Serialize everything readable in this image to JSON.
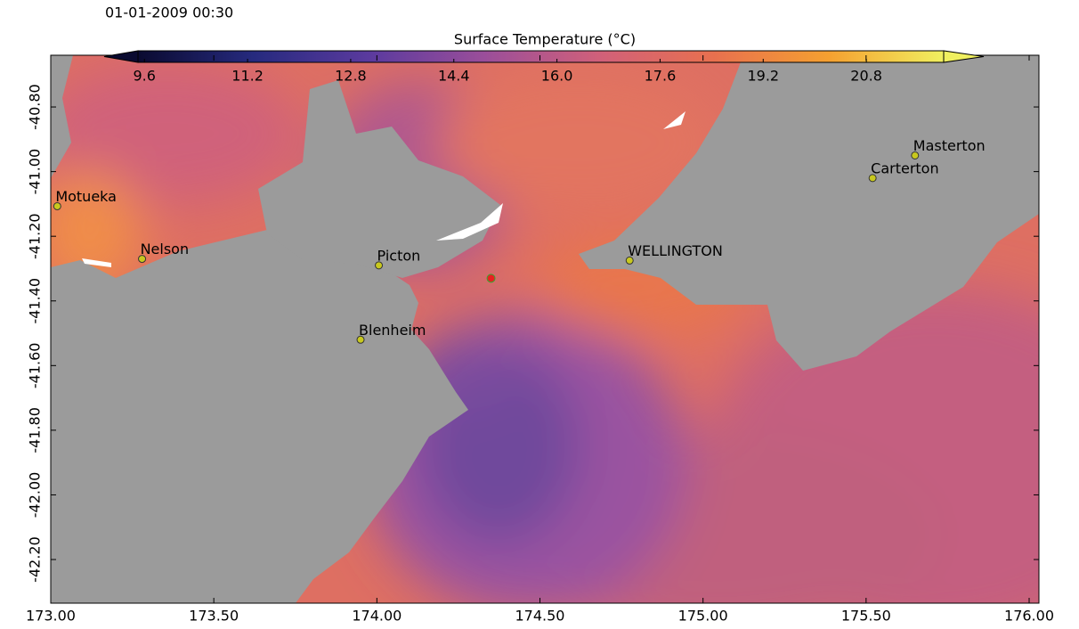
{
  "map": {
    "timestamp": "01-01-2009 00:30",
    "colorbar": {
      "title": "Surface Temperature (°C)",
      "clim": [
        9.5,
        22.0
      ],
      "ticks": [
        9.6,
        11.2,
        12.8,
        14.4,
        {
          "value": 16,
          "label": "16.0"
        },
        17.6,
        19.2,
        20.8
      ],
      "colors": [
        "#0a0a30",
        "#262a7e",
        "#5a3a9e",
        "#9a4e9a",
        "#d0607a",
        "#e8704f",
        "#f5a030",
        "#f0f060"
      ]
    },
    "xlim": [
      173.0,
      176.03
    ],
    "ylim": [
      -42.335,
      -40.64
    ],
    "xticks": [
      {
        "value": 173,
        "label": "173.00"
      },
      {
        "value": 173.5,
        "label": "173.50"
      },
      {
        "value": 174,
        "label": "174.00"
      },
      {
        "value": 174.5,
        "label": "174.50"
      },
      {
        "value": 175,
        "label": "175.00"
      },
      {
        "value": 175.5,
        "label": "175.50"
      },
      {
        "value": 176,
        "label": "176.00"
      }
    ],
    "yticks": [
      {
        "value": -40.8,
        "label": "-40.80"
      },
      {
        "value": -41,
        "label": "-41.00"
      },
      {
        "value": -41.2,
        "label": "-41.20"
      },
      {
        "value": -41.4,
        "label": "-41.40"
      },
      {
        "value": -41.6,
        "label": "-41.60"
      },
      {
        "value": -41.8,
        "label": "-41.80"
      },
      {
        "value": -42,
        "label": "-42.00"
      },
      {
        "value": -42.2,
        "label": "-42.20"
      }
    ],
    "cities": [
      {
        "name": "Motueka",
        "lon": 173.02,
        "lat": -41.107
      },
      {
        "name": "Nelson",
        "lon": 173.28,
        "lat": -41.27
      },
      {
        "name": "Picton",
        "lon": 174.006,
        "lat": -41.29
      },
      {
        "name": "Blenheim",
        "lon": 173.95,
        "lat": -41.52
      },
      {
        "name": "WELLINGTON",
        "lon": 174.775,
        "lat": -41.275
      },
      {
        "name": "Carterton",
        "lon": 175.52,
        "lat": -41.02
      },
      {
        "name": "Masterton",
        "lon": 175.65,
        "lat": -40.95
      }
    ],
    "site": {
      "lon": 174.35,
      "lat": -41.33,
      "color": "#e82020"
    }
  }
}
